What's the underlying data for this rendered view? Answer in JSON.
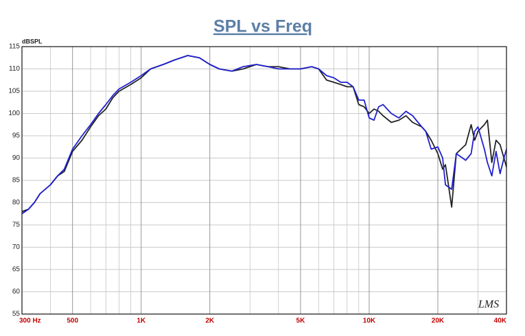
{
  "chart_data": {
    "type": "line",
    "title": "SPL vs Freq",
    "y_label": "dBSPL",
    "watermark": "LMS",
    "x_scale": "log",
    "grid": true,
    "xlim": [
      300,
      40000
    ],
    "ylim": [
      55,
      115
    ],
    "yticks": [
      55,
      60,
      65,
      70,
      75,
      80,
      85,
      90,
      95,
      100,
      105,
      110,
      115
    ],
    "xticks": [
      {
        "value": 300,
        "label": "300 Hz"
      },
      500,
      {
        "value": 1000,
        "label": "1K"
      },
      {
        "value": 2000,
        "label": "2K"
      },
      {
        "value": 5000,
        "label": "5K"
      },
      {
        "value": 10000,
        "label": "10K"
      },
      {
        "value": 20000,
        "label": "20K"
      },
      {
        "value": 40000,
        "label": "40K"
      }
    ],
    "xgrid": [
      400,
      600,
      700,
      800,
      900,
      3000,
      4000,
      6000,
      7000,
      8000,
      9000,
      30000
    ],
    "x": [
      300,
      320,
      340,
      360,
      400,
      430,
      460,
      500,
      550,
      600,
      650,
      700,
      750,
      800,
      900,
      1000,
      1100,
      1250,
      1400,
      1600,
      1800,
      2000,
      2200,
      2500,
      2800,
      3200,
      3600,
      4000,
      4500,
      5000,
      5600,
      6000,
      6500,
      7000,
      7500,
      8000,
      8500,
      9000,
      9500,
      10000,
      10500,
      11000,
      11500,
      12500,
      13500,
      14500,
      15500,
      17000,
      17700,
      18700,
      20000,
      21000,
      21600,
      23000,
      24100,
      26500,
      28000,
      29000,
      30000,
      32000,
      33000,
      34500,
      36000,
      37500,
      39000,
      40000
    ],
    "series": [
      {
        "name": "Black",
        "color": "#222222",
        "values": [
          78,
          78.5,
          80,
          82,
          84,
          86,
          87,
          91.5,
          94,
          97,
          99.5,
          101,
          103.5,
          105,
          106.5,
          108,
          110,
          111,
          112,
          113,
          112.5,
          111,
          110,
          109.5,
          110,
          111,
          110.5,
          110.5,
          110,
          110,
          110.5,
          110,
          107.5,
          107,
          106.5,
          106,
          106,
          102,
          101.5,
          100,
          101,
          100.5,
          99.5,
          98,
          98.5,
          99.5,
          98,
          97,
          96,
          94,
          91,
          87.5,
          88.5,
          79,
          91,
          93,
          97.5,
          94,
          96,
          97.5,
          98.5,
          89,
          94,
          93,
          90,
          88
        ]
      },
      {
        "name": "Blue",
        "color": "#1f1fd0",
        "values": [
          77.5,
          78.5,
          80,
          82,
          84,
          86,
          87.5,
          92,
          95,
          97.5,
          100,
          102,
          104,
          105.5,
          107,
          108.5,
          110,
          111,
          112,
          113,
          112.5,
          111,
          110,
          109.5,
          110.5,
          111,
          110.5,
          110,
          110,
          110,
          110.5,
          110,
          108.5,
          108,
          107,
          107,
          106,
          103,
          103,
          99,
          98.5,
          101.5,
          102,
          100,
          99,
          100.5,
          99.5,
          97,
          96,
          92,
          92.5,
          90,
          84,
          83,
          91,
          89.5,
          91,
          96,
          97,
          92,
          89,
          86,
          91.5,
          86.5,
          90,
          92
        ]
      }
    ]
  }
}
